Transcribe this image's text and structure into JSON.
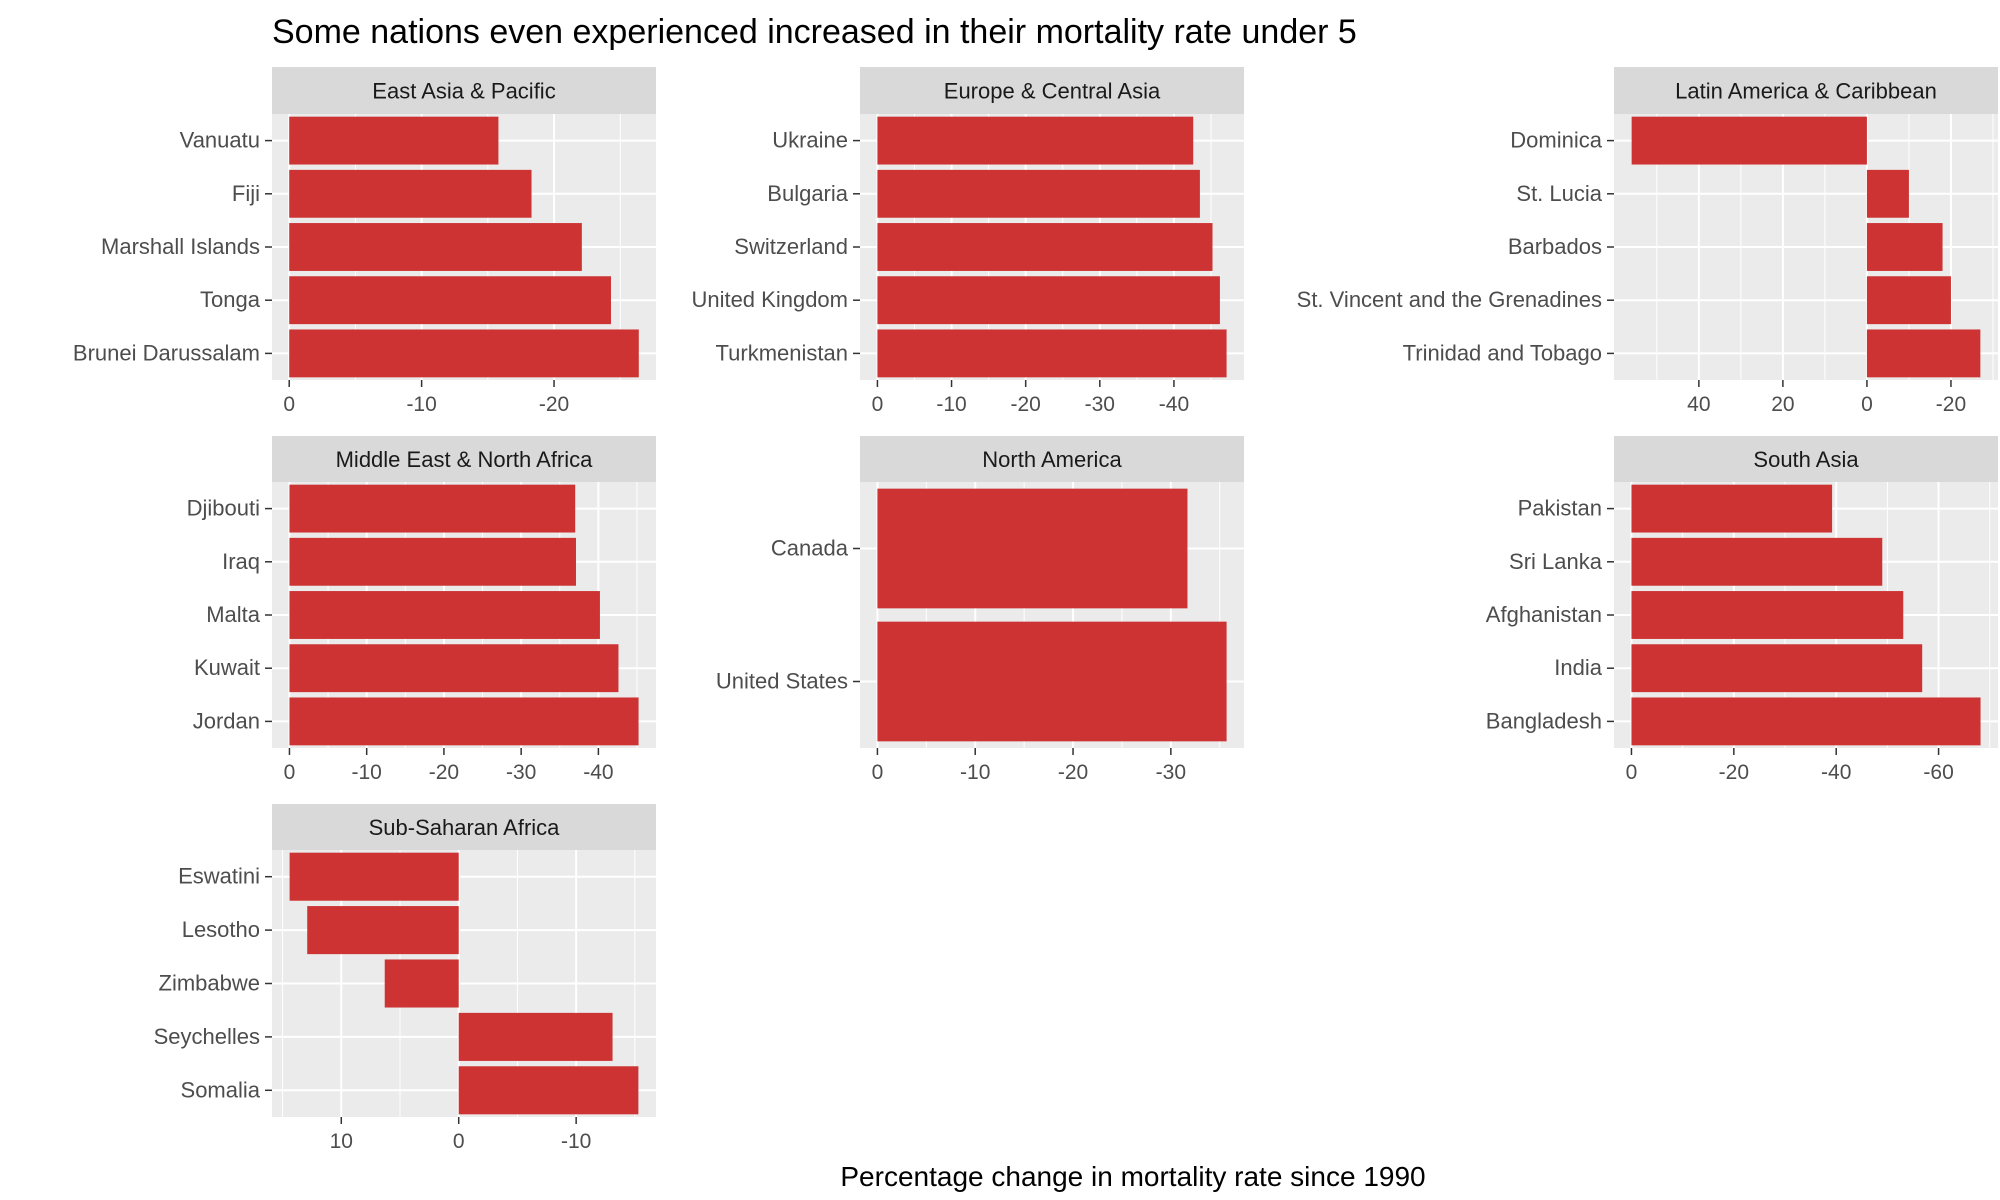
{
  "chart_data": {
    "type": "bar",
    "orientation": "horizontal",
    "title": "Some nations even experienced increased in their mortality rate under 5",
    "xlabel": "Percentage change in mortality rate since 1990",
    "ylabel": "",
    "bar_color": "#CD3333",
    "panel_bg": "#EBEBEB",
    "strip_bg": "#D9D9D9",
    "grid": true,
    "x_axis_reversed": true,
    "facets": [
      {
        "name": "East Asia & Pacific",
        "categories": [
          "Vanuatu",
          "Fiji",
          "Marshall Islands",
          "Tonga",
          "Brunei Darussalam"
        ],
        "values": [
          -15.8,
          -18.3,
          -22.1,
          -24.3,
          -26.4
        ],
        "xlim": [
          1.3,
          -27.7
        ],
        "ticks": [
          0,
          -10,
          -20
        ],
        "tick_labels": [
          "0",
          "-10",
          "-20"
        ]
      },
      {
        "name": "Europe & Central Asia",
        "categories": [
          "Ukraine",
          "Bulgaria",
          "Switzerland",
          "United Kingdom",
          "Turkmenistan"
        ],
        "values": [
          -42.6,
          -43.5,
          -45.2,
          -46.2,
          -47.1
        ],
        "xlim": [
          2.35,
          -49.45
        ],
        "ticks": [
          0,
          -10,
          -20,
          -30,
          -40
        ],
        "tick_labels": [
          "0",
          "-10",
          "-20",
          "-30",
          "-40"
        ]
      },
      {
        "name": "Latin America & Caribbean",
        "categories": [
          "Dominica",
          "St. Lucia",
          "Barbados",
          "St. Vincent and the Grenadines",
          "Trinidad and Tobago"
        ],
        "values": [
          56,
          -10,
          -18,
          -20,
          -27
        ],
        "xlim": [
          60.2,
          -31.2
        ],
        "ticks": [
          40,
          20,
          0,
          -20
        ],
        "tick_labels": [
          "40",
          "20",
          "0",
          "-20"
        ]
      },
      {
        "name": "Middle East & North Africa",
        "categories": [
          "Djibouti",
          "Iraq",
          "Malta",
          "Kuwait",
          "Jordan"
        ],
        "values": [
          -37,
          -37.1,
          -40.2,
          -42.6,
          -45.2
        ],
        "xlim": [
          2.26,
          -47.46
        ],
        "ticks": [
          0,
          -10,
          -20,
          -30,
          -40
        ],
        "tick_labels": [
          "0",
          "-10",
          "-20",
          "-30",
          "-40"
        ]
      },
      {
        "name": "North America",
        "categories": [
          "Canada",
          "United States"
        ],
        "values": [
          -31.7,
          -35.7
        ],
        "xlim": [
          1.78,
          -37.48
        ],
        "ticks": [
          0,
          -10,
          -20,
          -30
        ],
        "tick_labels": [
          "0",
          "-10",
          "-20",
          "-30"
        ]
      },
      {
        "name": "South Asia",
        "categories": [
          "Pakistan",
          "Sri Lanka",
          "Afghanistan",
          "India",
          "Bangladesh"
        ],
        "values": [
          -39.2,
          -49,
          -53.1,
          -56.8,
          -68.2
        ],
        "xlim": [
          3.41,
          -71.61
        ],
        "ticks": [
          0,
          -20,
          -40,
          -60
        ],
        "tick_labels": [
          "0",
          "-20",
          "-40",
          "-60"
        ]
      },
      {
        "name": "Sub-Saharan Africa",
        "categories": [
          "Eswatini",
          "Lesotho",
          "Zimbabwe",
          "Seychelles",
          "Somalia"
        ],
        "values": [
          14.4,
          12.9,
          6.3,
          -13.1,
          -15.3
        ],
        "xlim": [
          15.9,
          -16.8
        ],
        "ticks": [
          10,
          0,
          -10
        ],
        "tick_labels": [
          "10",
          "0",
          "-10"
        ]
      }
    ]
  }
}
